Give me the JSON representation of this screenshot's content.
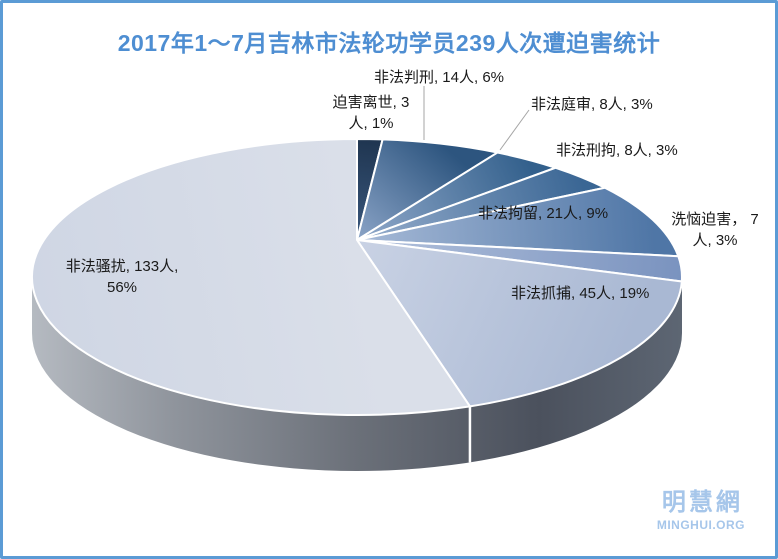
{
  "title": "2017年1～7月吉林市法轮功学员239人次遭迫害统计",
  "chart_data": {
    "type": "pie",
    "style": "3d-pie",
    "title": "2017年1～7月吉林市法轮功学员239人次遭迫害统计",
    "unit": "人",
    "total_people": 239,
    "order": "clockwise-from-top",
    "slices": [
      {
        "label": "迫害离世",
        "people": 3,
        "percent": 1,
        "display_lines": [
          "迫害离世, 3",
          "人, 1%"
        ],
        "color_outer": "#1f3550",
        "color_inner": "#3a587e"
      },
      {
        "label": "非法判刑",
        "people": 14,
        "percent": 6,
        "display_lines": [
          "非法判刑, 14人, 6%"
        ],
        "color_outer": "#2d557f",
        "color_inner": "#8ba4c7"
      },
      {
        "label": "非法庭审",
        "people": 8,
        "percent": 3,
        "display_lines": [
          "非法庭审, 8人, 3%"
        ],
        "color_outer": "#33608c",
        "color_inner": "#92aacb"
      },
      {
        "label": "非法刑拘",
        "people": 8,
        "percent": 3,
        "display_lines": [
          "非法刑拘, 8人, 3%"
        ],
        "color_outer": "#3a6694",
        "color_inner": "#97aecd"
      },
      {
        "label": "非法拘留",
        "people": 21,
        "percent": 9,
        "display_lines": [
          "非法拘留, 21人, 9%"
        ],
        "color_outer": "#4f76a6",
        "color_inner": "#a7bad7"
      },
      {
        "label": "洗恼迫害",
        "people": 7,
        "percent": 3,
        "display_lines": [
          "洗恼迫害， 7",
          "人, 3%"
        ],
        "color_outer": "#7a93bf",
        "color_inner": "#b2c1dc"
      },
      {
        "label": "非法抓捕",
        "people": 45,
        "percent": 19,
        "display_lines": [
          "非法抓捕, 45人, 19%"
        ],
        "color_outer": "#a9b8d3",
        "color_inner": "#c9d2e4"
      },
      {
        "label": "非法骚扰",
        "people": 133,
        "percent": 56,
        "display_lines": [
          "非法骚扰, 133人,",
          "56%"
        ],
        "color_outer": "#cfd6e4",
        "color_inner": "#dadfe9"
      }
    ]
  },
  "colors": {
    "frame_border": "#5b9bd5",
    "title_text": "#4e8ed2",
    "label_text": "#1a1a1a",
    "leader_line": "#a6a6a6",
    "slice_stroke": "#ffffff",
    "logo_text": "#a6c6ea",
    "side_gradient": [
      "#b5bac1",
      "#8f949c",
      "#6b7079",
      "#4b515d",
      "#5d6673"
    ]
  },
  "logo": {
    "chinese": "明慧網",
    "latin": "MINGHUI.ORG"
  }
}
